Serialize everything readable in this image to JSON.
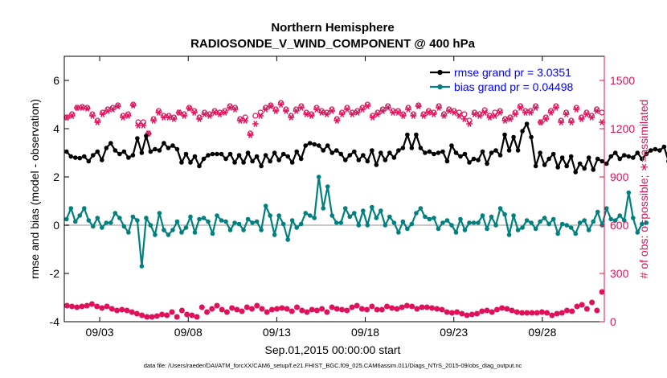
{
  "chart_data": {
    "type": "line",
    "title": "Northern Hemisphere",
    "subtitle": "RADIOSONDE_V_WIND_COMPONENT @ 400 hPa",
    "xlabel": "Sep.01,2015 00:00:00 start",
    "ylabel_left": "rmse and bias (model - observation)",
    "ylabel_right": "# of obs: o=possible; ∗=assimilated",
    "x_range": [
      0,
      30.5
    ],
    "ylim_left": [
      -4,
      7
    ],
    "ylim_right": [
      0,
      1650
    ],
    "x_ticks": [
      2,
      7,
      12,
      17,
      22,
      27
    ],
    "x_tick_labels": [
      "09/03",
      "09/08",
      "09/13",
      "09/18",
      "09/23",
      "09/28"
    ],
    "y_ticks_left": [
      -4,
      -2,
      0,
      2,
      4,
      6
    ],
    "y_tick_labels_left": [
      "-4",
      "-2",
      "0",
      "2",
      "4",
      "6"
    ],
    "y_ticks_right": [
      0,
      300,
      600,
      900,
      1200,
      1500
    ],
    "y_tick_labels_right": [
      "0",
      "300",
      "600",
      "900",
      "1200",
      "1500"
    ],
    "colors": {
      "rmse": "#000000",
      "bias": "#00807f",
      "obs": "#e0105a",
      "zero_line": "#c8c8c8",
      "legend_text": "#0000ff",
      "right_axis": "#e0105a"
    },
    "legend": [
      {
        "name": "rmse",
        "label": "rmse grand pr = 3.0351"
      },
      {
        "name": "bias",
        "label": "bias grand pr = 0.04498"
      }
    ],
    "x_step": 0.25,
    "series": [
      {
        "name": "rmse",
        "values": [
          3.05,
          2.85,
          2.8,
          2.78,
          2.85,
          2.65,
          2.9,
          3.05,
          2.7,
          3.2,
          3.4,
          3.1,
          2.95,
          3.05,
          2.8,
          2.9,
          3.6,
          3.0,
          3.7,
          3.05,
          3.15,
          3.1,
          3.4,
          3.2,
          3.3,
          3.15,
          2.6,
          2.95,
          2.6,
          2.85,
          2.45,
          2.75,
          2.9,
          2.95,
          2.95,
          2.95,
          2.75,
          2.95,
          2.6,
          2.9,
          2.6,
          3.0,
          2.65,
          2.85,
          2.45,
          2.9,
          2.65,
          3.0,
          2.7,
          2.95,
          2.85,
          2.6,
          3.05,
          2.75,
          3.3,
          3.4,
          3.35,
          3.3,
          3.1,
          3.3,
          3.0,
          3.1,
          2.95,
          2.7,
          2.9,
          3.05,
          2.7,
          2.9,
          2.65,
          3.1,
          2.5,
          3.0,
          2.7,
          3.0,
          2.8,
          3.1,
          3.2,
          3.75,
          3.2,
          3.75,
          3.2,
          3.0,
          3.05,
          2.95,
          3.0,
          3.05,
          2.65,
          3.3,
          3.0,
          2.85,
          2.95,
          2.6,
          2.75,
          2.7,
          3.05,
          2.55,
          3.0,
          3.1,
          2.9,
          3.75,
          3.1,
          3.65,
          3.1,
          3.9,
          4.2,
          3.65,
          2.45,
          3.0,
          2.5,
          2.75,
          2.95,
          2.4,
          2.8,
          2.45,
          2.85,
          2.2,
          2.55,
          2.35,
          2.8,
          2.3,
          2.75,
          2.65,
          2.55,
          2.85,
          3.0,
          2.75,
          2.9,
          2.85,
          2.8,
          3.0,
          2.75,
          2.95,
          3.1,
          3.15,
          3.1,
          3.25,
          2.65,
          3.2,
          3.2
        ]
      },
      {
        "name": "bias",
        "values": [
          0.25,
          0.7,
          0.15,
          0.4,
          0.7,
          0.2,
          -0.05,
          0.3,
          -0.1,
          0.1,
          0.1,
          0.5,
          0.3,
          -0.05,
          -0.3,
          0.35,
          0.2,
          -1.7,
          0.3,
          0.0,
          -0.4,
          0.5,
          -0.2,
          -0.4,
          -0.2,
          0.15,
          -0.3,
          -0.1,
          0.35,
          -0.3,
          0.25,
          0.3,
          0.15,
          -0.35,
          0.4,
          0.2,
          0.15,
          -0.2,
          0.1,
          0.05,
          -0.2,
          0.25,
          0.1,
          0.15,
          -0.2,
          0.8,
          0.4,
          -0.4,
          0.4,
          0.05,
          -0.6,
          0.2,
          -0.1,
          0.05,
          0.5,
          0.4,
          0.3,
          2.0,
          0.7,
          1.6,
          0.4,
          0.1,
          0.1,
          0.7,
          0.35,
          0.5,
          0.0,
          0.6,
          0.0,
          0.75,
          0.3,
          0.6,
          0.0,
          0.35,
          0.1,
          -0.3,
          0.15,
          -0.15,
          0.05,
          0.5,
          0.7,
          0.35,
          0.25,
          0.3,
          -0.15,
          0.1,
          0.2,
          0.0,
          -0.3,
          0.25,
          -0.2,
          0.1,
          0.1,
          0.1,
          0.4,
          -0.15,
          0.35,
          0.0,
          0.7,
          0.45,
          -0.4,
          0.4,
          -0.2,
          -0.1,
          0.2,
          0.1,
          -0.15,
          0.15,
          0.3,
          0.05,
          0.25,
          -0.35,
          0.05,
          0.0,
          -0.1,
          -0.35,
          0.1,
          0.2,
          -0.2,
          0.15,
          0.55,
          0.0,
          0.7,
          0.25,
          0.2,
          0.4,
          0.2,
          1.35,
          0.3,
          -0.3,
          0.05,
          0.1
        ]
      },
      {
        "name": "obs_possible",
        "values": [
          1270,
          1290,
          1330,
          1335,
          1330,
          1290,
          1250,
          1300,
          1320,
          1330,
          1345,
          1280,
          1290,
          1350,
          1240,
          1240,
          1170,
          1260,
          1310,
          1280,
          1280,
          1270,
          1300,
          1290,
          1330,
          1310,
          1270,
          1300,
          1290,
          1310,
          1300,
          1310,
          1340,
          1330,
          1260,
          1270,
          1170,
          1280,
          1300,
          1330,
          1345,
          1320,
          1360,
          1320,
          1280,
          1320,
          1340,
          1300,
          1290,
          1330,
          1310,
          1300,
          1320,
          1260,
          1300,
          1330,
          1300,
          1310,
          1330,
          1350,
          1280,
          1300,
          1320,
          1340,
          1310,
          1310,
          1290,
          1330,
          1290,
          1345,
          1290,
          1310,
          1300,
          1340,
          1290,
          1320,
          1310,
          1300,
          1290,
          1250,
          1300,
          1290,
          1315,
          1280,
          1300,
          1310,
          1260,
          1270,
          1300,
          1340,
          1310,
          1310,
          1340,
          1240,
          1270,
          1310,
          1340,
          1250,
          1300,
          1250,
          1330,
          1270,
          1300,
          1280,
          1320,
          1300
        ]
      },
      {
        "name": "obs_assimilated",
        "values": [
          1270,
          1280,
          1330,
          1330,
          1325,
          1280,
          1240,
          1290,
          1310,
          1320,
          1340,
          1270,
          1280,
          1345,
          1220,
          1220,
          1170,
          1250,
          1300,
          1270,
          1270,
          1260,
          1300,
          1280,
          1325,
          1300,
          1260,
          1290,
          1280,
          1300,
          1290,
          1300,
          1330,
          1320,
          1250,
          1250,
          1160,
          1230,
          1280,
          1320,
          1340,
          1310,
          1350,
          1310,
          1270,
          1310,
          1330,
          1290,
          1280,
          1320,
          1300,
          1290,
          1310,
          1250,
          1290,
          1320,
          1290,
          1300,
          1320,
          1340,
          1270,
          1290,
          1310,
          1330,
          1300,
          1300,
          1280,
          1320,
          1280,
          1340,
          1280,
          1300,
          1290,
          1330,
          1280,
          1310,
          1300,
          1280,
          1260,
          1230,
          1290,
          1280,
          1300,
          1270,
          1280,
          1300,
          1250,
          1260,
          1290,
          1330,
          1300,
          1300,
          1330,
          1240,
          1260,
          1300,
          1330,
          1240,
          1290,
          1240,
          1320,
          1260,
          1290,
          1270,
          1310,
          1240
        ]
      },
      {
        "name": "obs_low",
        "values": [
          100,
          95,
          90,
          95,
          100,
          110,
          95,
          85,
          95,
          80,
          70,
          75,
          70,
          60,
          50,
          40,
          30,
          30,
          35,
          45,
          40,
          60,
          30,
          70,
          45,
          40,
          30,
          90,
          60,
          80,
          100,
          75,
          60,
          85,
          75,
          65,
          90,
          80,
          100,
          80,
          60,
          75,
          80,
          85,
          80,
          65,
          90,
          70,
          60,
          75,
          70,
          80,
          60,
          90,
          80,
          75,
          70,
          90,
          100,
          80,
          75,
          95,
          75,
          75,
          95,
          85,
          80,
          90,
          100,
          95,
          80,
          90,
          90,
          85,
          80,
          75,
          60,
          55,
          60,
          50,
          40,
          45,
          50,
          65,
          70,
          60,
          75,
          85,
          80,
          70,
          60,
          55,
          55,
          55,
          55,
          60,
          55,
          40,
          50,
          55,
          70,
          65,
          95,
          105,
          80,
          120,
          70,
          185
        ]
      }
    ]
  },
  "footer_text": "data file: /Users/raeder/DAI/ATM_forcXX/CAM6_setup/f.e21.FHIST_BGC.f09_025.CAM6assim.011/Diags_NTrS_2015-09/obs_diag_output.nc"
}
